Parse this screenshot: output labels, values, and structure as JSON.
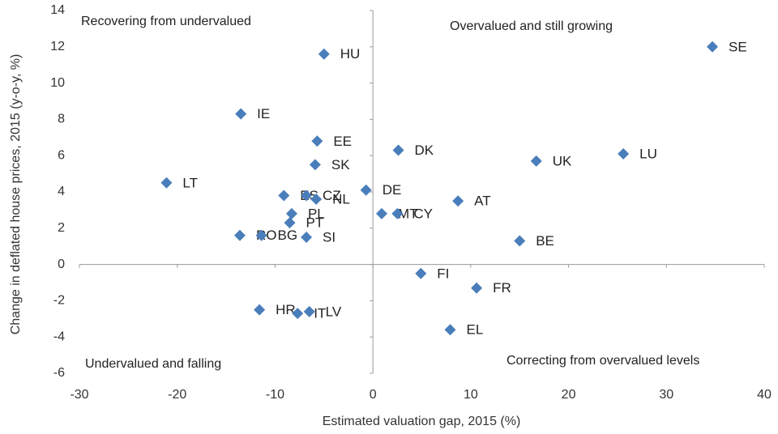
{
  "chart_data": {
    "type": "scatter",
    "xlabel": "Estimated valuation gap, 2015 (%)",
    "ylabel": "Change in deflated house prices, 2015 (y-o-y, %)",
    "annotations": [
      "Recovering from undervalued",
      "Overvalued and still growing",
      "Undervalued and falling",
      "Correcting from overvalued levels"
    ],
    "labels": [
      "SE",
      "HU",
      "IE",
      "EE",
      "SK",
      "DK",
      "UK",
      "LU",
      "LT",
      "DE",
      "ES",
      "CZ",
      "NL",
      "AT",
      "PL",
      "MT",
      "CY",
      "PT",
      "RO",
      "BG",
      "SI",
      "BE",
      "FI",
      "FR",
      "HR",
      "IT",
      "LV",
      "EL"
    ],
    "x": [
      34.7,
      -5.0,
      -13.5,
      -5.7,
      -5.9,
      2.6,
      16.7,
      25.6,
      -21.1,
      -0.7,
      -9.1,
      -6.8,
      -5.8,
      8.7,
      -8.3,
      0.9,
      2.5,
      -8.5,
      -13.6,
      -11.4,
      -6.8,
      15.0,
      4.9,
      10.6,
      -11.6,
      -7.7,
      -6.5,
      7.9
    ],
    "y": [
      12.0,
      11.6,
      8.3,
      6.8,
      5.5,
      6.3,
      5.7,
      6.1,
      4.5,
      4.1,
      3.8,
      3.8,
      3.6,
      3.5,
      2.8,
      2.8,
      2.8,
      2.3,
      1.6,
      1.6,
      1.5,
      1.3,
      -0.5,
      -1.3,
      -2.5,
      -2.7,
      -2.6,
      -3.6
    ],
    "color": "#4a7ebb",
    "xlim": [
      -30,
      40
    ],
    "ylim": [
      -6,
      14
    ],
    "xticks": [
      -30,
      -20,
      -10,
      0,
      10,
      20,
      30,
      40
    ],
    "yticks": [
      -6,
      -4,
      -2,
      0,
      2,
      4,
      6,
      8,
      10,
      12,
      14
    ]
  }
}
